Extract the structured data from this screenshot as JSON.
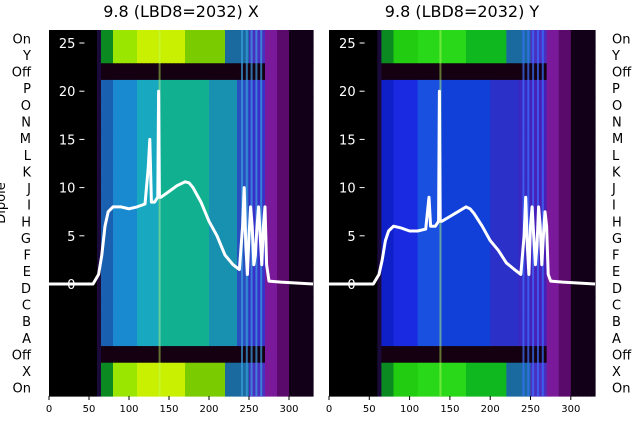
{
  "chart_data": [
    {
      "type": "heatmap",
      "title": "9.8 (LBD8=2032) X",
      "ylabel": "Dipole",
      "xlabel": "",
      "xlim": [
        0,
        330
      ],
      "x_ticks": [
        0,
        50,
        100,
        150,
        200,
        250,
        300
      ],
      "row_labels": [
        "On",
        "Y",
        "Off",
        "P",
        "O",
        "N",
        "M",
        "L",
        "K",
        "J",
        "I",
        "H",
        "G",
        "F",
        "E",
        "D",
        "C",
        "B",
        "A",
        "Off",
        "X",
        "On"
      ],
      "overlay_ylim": [
        0,
        27
      ],
      "overlay_ticks": [
        0,
        5,
        10,
        15,
        20,
        25
      ],
      "grid": false,
      "overlay_line": {
        "x": [
          0,
          55,
          62,
          66,
          70,
          74,
          80,
          90,
          100,
          110,
          120,
          124,
          126,
          128,
          130,
          132,
          136,
          137,
          138,
          139,
          140,
          150,
          160,
          170,
          175,
          180,
          190,
          200,
          210,
          220,
          230,
          238,
          242,
          244,
          246,
          248,
          250,
          252,
          254,
          256,
          258,
          260,
          262,
          264,
          266,
          268,
          270,
          272,
          275,
          290,
          330
        ],
        "y": [
          0,
          0,
          1,
          3,
          6,
          7.5,
          8,
          8,
          7.8,
          8,
          8.3,
          12,
          15,
          8.5,
          8.5,
          8.5,
          9,
          20,
          9,
          9,
          9,
          9.6,
          10.2,
          10.6,
          10.5,
          10,
          8.5,
          6.5,
          5,
          3,
          2,
          1.5,
          6,
          10,
          4,
          1,
          5,
          8,
          6,
          2,
          3,
          6,
          8,
          5,
          2,
          6,
          8,
          2,
          0.3,
          0.2,
          0
        ]
      }
    },
    {
      "type": "heatmap",
      "title": "9.8 (LBD8=2032) Y",
      "ylabel": "",
      "xlabel": "",
      "xlim": [
        0,
        330
      ],
      "x_ticks": [
        0,
        50,
        100,
        150,
        200,
        250,
        300
      ],
      "row_labels": [
        "On",
        "Y",
        "Off",
        "P",
        "O",
        "N",
        "M",
        "L",
        "K",
        "J",
        "I",
        "H",
        "G",
        "F",
        "E",
        "D",
        "C",
        "B",
        "A",
        "Off",
        "X",
        "On"
      ],
      "overlay_ylim": [
        0,
        27
      ],
      "overlay_ticks": [
        0,
        5,
        10,
        15,
        20,
        25
      ],
      "grid": false,
      "overlay_line": {
        "x": [
          0,
          55,
          62,
          66,
          70,
          74,
          80,
          90,
          100,
          110,
          120,
          124,
          126,
          128,
          130,
          132,
          136,
          137,
          138,
          139,
          140,
          150,
          160,
          170,
          175,
          180,
          190,
          200,
          210,
          220,
          230,
          238,
          242,
          244,
          246,
          248,
          250,
          252,
          254,
          256,
          258,
          260,
          262,
          264,
          266,
          268,
          270,
          272,
          275,
          290,
          330
        ],
        "y": [
          0,
          0,
          1,
          2.5,
          4.5,
          5.5,
          6,
          5.8,
          5.5,
          5.5,
          5.7,
          9,
          6,
          6,
          6,
          6,
          6.5,
          20,
          6.5,
          6.5,
          6.5,
          7,
          7.5,
          8,
          7.8,
          7.3,
          6,
          4.5,
          3.5,
          2.2,
          1.5,
          1,
          5,
          9,
          4,
          1,
          6,
          8,
          5,
          2,
          4,
          8,
          6,
          2,
          5,
          7.5,
          6,
          1,
          0.3,
          0.2,
          0
        ]
      }
    }
  ]
}
